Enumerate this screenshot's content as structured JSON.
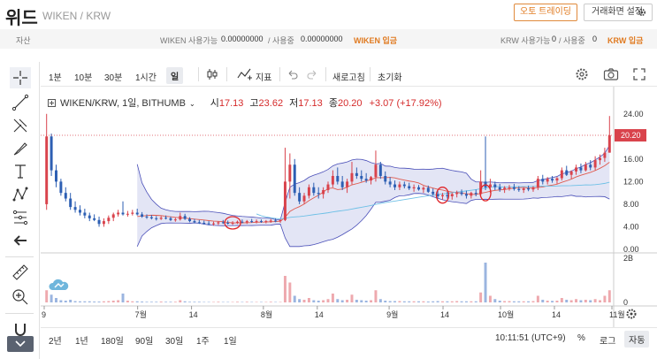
{
  "header": {
    "title": "위드",
    "pair": "WIKEN / KRW",
    "auto_trading": "오토 트레이딩",
    "screen_settings": "거래화면 설정"
  },
  "asset_bar": {
    "label": "자산",
    "wiken_available_label": "WIKEN 사용가능",
    "wiken_available": "0.00000000",
    "wiken_in_use_label": "/ 사용중",
    "wiken_in_use": "0.00000000",
    "wiken_deposit": "WIKEN 입금",
    "krw_available_label": "KRW 사용가능",
    "krw_available": "0",
    "krw_in_use_label": "/ 사용중",
    "krw_in_use": "0",
    "krw_deposit": "KRW 입금"
  },
  "toolbar": {
    "i1m": "1분",
    "i10m": "10분",
    "i30m": "30분",
    "i1h": "1시간",
    "day": "일",
    "indicator": "지표",
    "refresh": "새로고침",
    "reset": "초기화"
  },
  "legend": {
    "symbol": "WIKEN/KRW, 1일, BITHUMB",
    "open_label": "시",
    "open": "17.13",
    "high_label": "고",
    "high": "23.62",
    "low_label": "저",
    "low": "17.13",
    "close_label": "종",
    "close": "20.20",
    "change": "+3.07 (+17.92%)"
  },
  "bottom_bar": {
    "r2y": "2년",
    "r1y": "1년",
    "r180d": "180일",
    "r90d": "90일",
    "r30d": "30일",
    "r1w": "1주",
    "r1d": "1일",
    "clock": "10:11:51 (UTC+9)",
    "percent": "%",
    "log": "로그",
    "auto": "자동"
  },
  "colors": {
    "up": "#d9434c",
    "down": "#2d5fb3",
    "band_fill": "#d9dcf2",
    "band_line": "#4a4fb8",
    "ma_short": "#e05a4e",
    "ma_long": "#6ec0e6",
    "vol_up": "#eea9ae",
    "vol_down": "#9bb5e0",
    "accent": "#e07a20",
    "annotation": "#e0262a"
  },
  "chart_data": {
    "type": "candlestick",
    "y_ticks": [
      "24.00",
      "20.00",
      "16.00",
      "12.00",
      "8.00",
      "4.00",
      "0.00"
    ],
    "ylim": [
      0,
      26
    ],
    "current_price": "20.20",
    "volume_ticks": [
      "2B",
      "0"
    ],
    "x_ticks": [
      "9",
      "7월",
      "14",
      "8월",
      "14",
      "9월",
      "14",
      "10월",
      "14",
      "11월"
    ],
    "candles_ohlc": [
      [
        8.0,
        24.0,
        7.0,
        20.0
      ],
      [
        20.0,
        20.5,
        13.0,
        14.0
      ],
      [
        14.0,
        15.0,
        11.0,
        12.0
      ],
      [
        12.0,
        12.5,
        9.5,
        10.0
      ],
      [
        10.0,
        11.0,
        8.5,
        9.0
      ],
      [
        9.0,
        10.0,
        7.0,
        7.5
      ],
      [
        7.5,
        8.5,
        6.5,
        7.0
      ],
      [
        7.0,
        7.8,
        6.0,
        6.5
      ],
      [
        6.5,
        7.2,
        5.5,
        6.0
      ],
      [
        6.0,
        6.5,
        5.0,
        5.5
      ],
      [
        5.5,
        6.2,
        5.0,
        5.2
      ],
      [
        5.2,
        5.8,
        4.0,
        4.5
      ],
      [
        4.5,
        5.5,
        4.0,
        5.0
      ],
      [
        5.0,
        6.0,
        4.5,
        5.6
      ],
      [
        5.6,
        6.5,
        5.0,
        6.2
      ],
      [
        6.2,
        7.0,
        5.8,
        6.5
      ],
      [
        6.5,
        8.5,
        6.0,
        6.2
      ],
      [
        6.2,
        6.8,
        5.8,
        6.3
      ],
      [
        6.3,
        7.0,
        6.0,
        6.5
      ],
      [
        6.5,
        7.2,
        6.0,
        6.2
      ],
      [
        6.2,
        6.6,
        5.6,
        5.8
      ],
      [
        5.8,
        6.2,
        5.4,
        5.7
      ],
      [
        5.7,
        6.1,
        5.3,
        5.5
      ],
      [
        5.5,
        5.9,
        5.1,
        5.4
      ],
      [
        5.4,
        5.9,
        5.2,
        5.6
      ],
      [
        5.6,
        6.0,
        5.3,
        5.5
      ],
      [
        5.5,
        5.8,
        5.0,
        5.2
      ],
      [
        5.2,
        5.6,
        4.9,
        5.3
      ],
      [
        5.3,
        6.5,
        5.1,
        5.9
      ],
      [
        5.9,
        6.3,
        5.2,
        5.4
      ],
      [
        5.4,
        5.7,
        4.8,
        5.0
      ],
      [
        5.0,
        5.4,
        4.6,
        4.8
      ],
      [
        4.8,
        5.2,
        4.5,
        4.7
      ],
      [
        4.7,
        5.1,
        4.4,
        4.6
      ],
      [
        4.6,
        5.0,
        4.3,
        4.5
      ],
      [
        4.5,
        4.9,
        4.2,
        4.6
      ],
      [
        4.6,
        5.0,
        4.3,
        4.8
      ],
      [
        4.8,
        5.2,
        4.5,
        4.7
      ],
      [
        4.7,
        5.1,
        4.4,
        4.6
      ],
      [
        4.6,
        5.0,
        4.3,
        4.7
      ],
      [
        4.7,
        5.1,
        4.5,
        4.9
      ],
      [
        4.9,
        5.3,
        4.6,
        4.8
      ],
      [
        4.8,
        5.2,
        4.5,
        5.0
      ],
      [
        5.0,
        5.4,
        4.7,
        4.9
      ],
      [
        4.9,
        5.3,
        4.6,
        5.0
      ],
      [
        5.0,
        5.3,
        4.7,
        4.9
      ],
      [
        4.9,
        5.2,
        4.6,
        5.0
      ],
      [
        5.0,
        5.4,
        4.7,
        5.1
      ],
      [
        5.1,
        5.5,
        4.8,
        5.0
      ],
      [
        5.0,
        5.3,
        4.7,
        5.2
      ],
      [
        5.2,
        18.0,
        5.0,
        12.0
      ],
      [
        12.0,
        17.0,
        9.0,
        15.0
      ],
      [
        15.0,
        16.0,
        9.5,
        10.0
      ],
      [
        10.0,
        11.0,
        8.0,
        8.5
      ],
      [
        8.5,
        10.0,
        8.0,
        9.5
      ],
      [
        9.5,
        11.5,
        9.0,
        11.0
      ],
      [
        11.0,
        11.8,
        9.5,
        10.0
      ],
      [
        10.0,
        11.0,
        9.0,
        9.8
      ],
      [
        9.8,
        11.0,
        9.0,
        10.5
      ],
      [
        10.5,
        12.0,
        10.0,
        11.5
      ],
      [
        11.5,
        14.0,
        11.0,
        13.0
      ],
      [
        13.0,
        14.5,
        11.5,
        12.0
      ],
      [
        12.0,
        13.0,
        10.5,
        11.0
      ],
      [
        11.0,
        12.5,
        10.0,
        12.0
      ],
      [
        12.0,
        15.5,
        11.5,
        13.5
      ],
      [
        13.5,
        14.5,
        12.5,
        13.0
      ],
      [
        13.0,
        14.0,
        12.0,
        12.5
      ],
      [
        12.5,
        13.5,
        11.8,
        12.2
      ],
      [
        12.2,
        13.0,
        11.5,
        12.8
      ],
      [
        12.8,
        17.5,
        12.0,
        15.0
      ],
      [
        15.0,
        15.5,
        12.5,
        13.0
      ],
      [
        13.0,
        13.8,
        11.5,
        12.0
      ],
      [
        12.0,
        12.8,
        11.0,
        11.5
      ],
      [
        11.5,
        12.2,
        10.5,
        11.0
      ],
      [
        11.0,
        12.0,
        10.5,
        11.5
      ],
      [
        11.5,
        12.0,
        10.8,
        11.2
      ],
      [
        11.2,
        11.8,
        10.5,
        10.8
      ],
      [
        10.8,
        11.5,
        10.2,
        11.0
      ],
      [
        11.0,
        11.4,
        10.4,
        10.6
      ],
      [
        10.6,
        11.2,
        10.0,
        10.9
      ],
      [
        10.9,
        11.3,
        10.0,
        10.2
      ],
      [
        10.2,
        10.8,
        9.5,
        9.8
      ],
      [
        9.8,
        10.4,
        9.0,
        9.4
      ],
      [
        9.4,
        10.0,
        8.8,
        9.6
      ],
      [
        9.6,
        10.2,
        9.0,
        9.4
      ],
      [
        9.4,
        10.0,
        8.8,
        9.8
      ],
      [
        9.8,
        10.4,
        9.2,
        10.1
      ],
      [
        10.1,
        10.6,
        9.5,
        9.8
      ],
      [
        9.8,
        10.4,
        9.0,
        9.5
      ],
      [
        9.5,
        10.2,
        9.0,
        10.0
      ],
      [
        10.0,
        10.6,
        9.4,
        9.8
      ],
      [
        9.8,
        14.0,
        9.5,
        12.0
      ],
      [
        12.0,
        20.0,
        10.5,
        11.0
      ],
      [
        11.0,
        12.5,
        10.0,
        11.5
      ],
      [
        11.5,
        12.0,
        10.5,
        11.0
      ],
      [
        11.0,
        11.6,
        10.2,
        10.6
      ],
      [
        10.6,
        11.2,
        10.0,
        10.9
      ],
      [
        10.9,
        11.4,
        10.4,
        11.0
      ],
      [
        11.0,
        11.6,
        10.4,
        10.7
      ],
      [
        10.7,
        11.2,
        10.2,
        10.5
      ],
      [
        10.5,
        11.0,
        10.0,
        10.8
      ],
      [
        10.8,
        11.3,
        10.3,
        10.6
      ],
      [
        10.6,
        11.2,
        10.2,
        11.0
      ],
      [
        11.0,
        13.0,
        10.5,
        12.5
      ],
      [
        12.5,
        13.2,
        11.5,
        12.0
      ],
      [
        12.0,
        12.8,
        11.5,
        12.5
      ],
      [
        12.5,
        13.0,
        11.8,
        12.2
      ],
      [
        12.2,
        12.8,
        11.6,
        12.6
      ],
      [
        12.6,
        14.5,
        12.2,
        14.0
      ],
      [
        14.0,
        14.8,
        13.0,
        13.2
      ],
      [
        13.2,
        14.0,
        12.5,
        13.8
      ],
      [
        13.8,
        15.0,
        13.2,
        14.5
      ],
      [
        14.5,
        15.2,
        13.5,
        14.0
      ],
      [
        14.0,
        15.5,
        13.8,
        15.0
      ],
      [
        15.0,
        15.8,
        14.0,
        14.5
      ],
      [
        14.5,
        16.5,
        14.0,
        15.8
      ],
      [
        15.8,
        16.8,
        15.0,
        16.2
      ],
      [
        16.2,
        18.0,
        15.5,
        17.13
      ],
      [
        17.13,
        23.62,
        17.13,
        20.2
      ]
    ],
    "volume": [
      0.55,
      0.35,
      0.2,
      0.1,
      0.08,
      0.12,
      0.06,
      0.05,
      0.05,
      0.05,
      0.04,
      0.04,
      0.05,
      0.06,
      0.08,
      0.1,
      0.4,
      0.08,
      0.05,
      0.05,
      0.04,
      0.03,
      0.03,
      0.03,
      0.04,
      0.03,
      0.03,
      0.03,
      0.1,
      0.05,
      0.03,
      0.03,
      0.03,
      0.02,
      0.02,
      0.02,
      0.03,
      0.02,
      0.02,
      0.02,
      0.03,
      0.02,
      0.03,
      0.02,
      0.02,
      0.02,
      0.02,
      0.03,
      0.02,
      0.02,
      1.2,
      0.9,
      0.3,
      0.15,
      0.12,
      0.2,
      0.1,
      0.08,
      0.1,
      0.15,
      0.4,
      0.15,
      0.1,
      0.12,
      0.35,
      0.12,
      0.1,
      0.08,
      0.1,
      0.55,
      0.15,
      0.08,
      0.06,
      0.06,
      0.06,
      0.05,
      0.05,
      0.05,
      0.05,
      0.05,
      0.04,
      0.05,
      0.06,
      0.05,
      0.05,
      0.05,
      0.06,
      0.05,
      0.05,
      0.05,
      0.05,
      0.45,
      1.8,
      0.3,
      0.15,
      0.08,
      0.06,
      0.06,
      0.05,
      0.05,
      0.05,
      0.05,
      0.06,
      0.3,
      0.12,
      0.08,
      0.07,
      0.08,
      0.2,
      0.12,
      0.1,
      0.15,
      0.1,
      0.12,
      0.1,
      0.15,
      0.1,
      0.3,
      0.55
    ]
  }
}
